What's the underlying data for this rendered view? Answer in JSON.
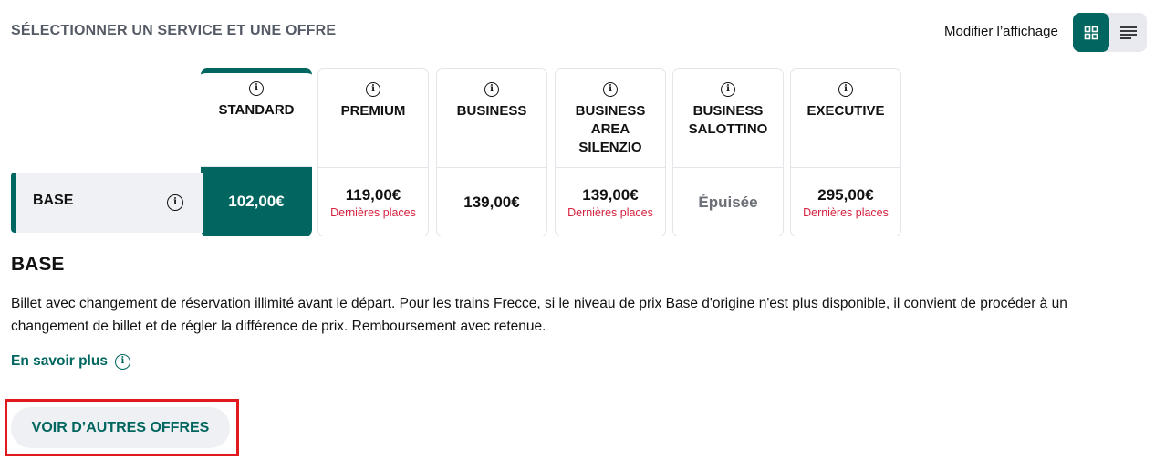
{
  "header": {
    "title": "SÉLECTIONNER UN SERVICE ET UNE OFFRE",
    "view_label": "Modifier l’affichage"
  },
  "view_toggle": {
    "active": "grid",
    "options": [
      "grid-icon",
      "list-icon"
    ]
  },
  "services": [
    {
      "name": "STANDARD",
      "price": "102,00€",
      "note": "",
      "selected": true
    },
    {
      "name": "PREMIUM",
      "price": "119,00€",
      "note": "Dernières places"
    },
    {
      "name": "BUSINESS",
      "price": "139,00€",
      "note": ""
    },
    {
      "name": "BUSINESS AREA SILENZIO",
      "price": "139,00€",
      "note": "Dernières places"
    },
    {
      "name": "BUSINESS SALOTTINO",
      "price": "Épuisée",
      "note": "",
      "sold_out": true
    },
    {
      "name": "EXECUTIVE",
      "price": "295,00€",
      "note": "Dernières places"
    }
  ],
  "offer": {
    "row_label": "BASE",
    "title": "BASE",
    "description": "Billet avec changement de réservation illimité avant le départ. Pour les trains Frecce, si le niveau de prix Base d'origine n'est plus disponible, il convient de procéder à un changement de billet et de régler la différence de prix. Remboursement avec retenue.",
    "more_link": "En savoir plus"
  },
  "more_offers_button": "VOIR D’AUTRES OFFRES",
  "colors": {
    "accent": "#00665f",
    "warning": "#d6223f",
    "highlight": "#e0191f"
  }
}
